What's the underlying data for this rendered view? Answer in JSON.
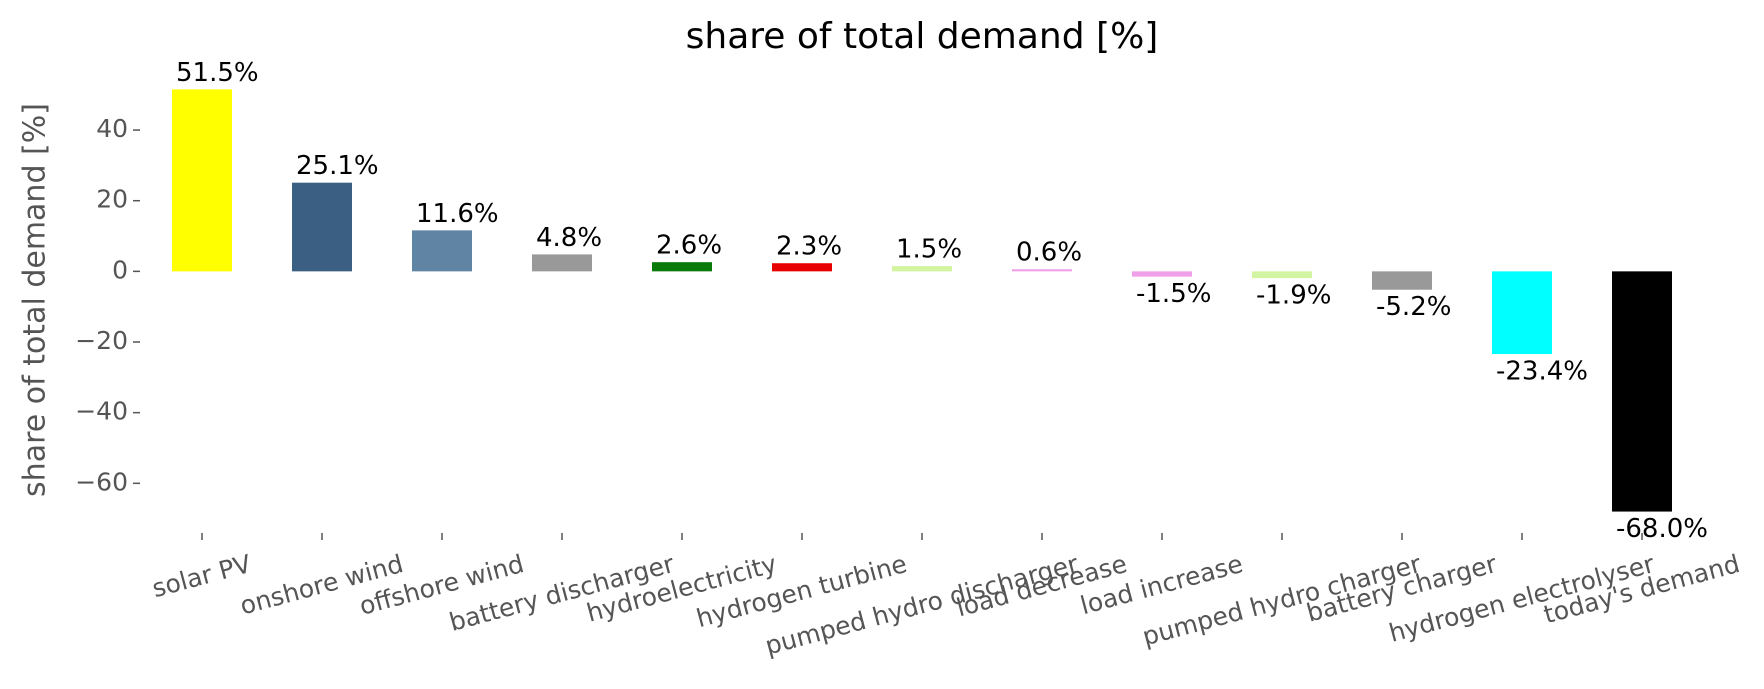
{
  "chart_data": {
    "type": "bar",
    "title": "share of total demand [%]",
    "ylabel": "share of total demand [%]",
    "categories": [
      "solar PV",
      "onshore wind",
      "offshore wind",
      "battery discharger",
      "hydroelectricity",
      "hydrogen turbine",
      "pumped hydro discharger",
      "load decrease",
      "load increase",
      "pumped hydro charger",
      "battery charger",
      "hydrogen electrolyser",
      "today's demand"
    ],
    "values": [
      51.5,
      25.1,
      11.6,
      4.8,
      2.6,
      2.3,
      1.5,
      0.6,
      -1.5,
      -1.9,
      -5.2,
      -23.4,
      -68.0
    ],
    "value_labels": [
      "51.5%",
      "25.1%",
      "11.6%",
      "4.8%",
      "2.6%",
      "2.3%",
      "1.5%",
      "0.6%",
      "-1.5%",
      "-1.9%",
      "-5.2%",
      "-23.4%",
      "-68.0%"
    ],
    "colors": [
      "#ffff00",
      "#3b5f82",
      "#5f84a4",
      "#999999",
      "#0a7a0a",
      "#e60000",
      "#d3f4a0",
      "#f0a0e8",
      "#f0a0e8",
      "#d3f4a0",
      "#999999",
      "#00ffff",
      "#000000"
    ],
    "ylim": [
      -73.5,
      57
    ],
    "yticks": [
      {
        "value": -60,
        "label": "−60"
      },
      {
        "value": -40,
        "label": "−40"
      },
      {
        "value": -20,
        "label": "−20"
      },
      0,
      20,
      40
    ],
    "grid": false
  }
}
